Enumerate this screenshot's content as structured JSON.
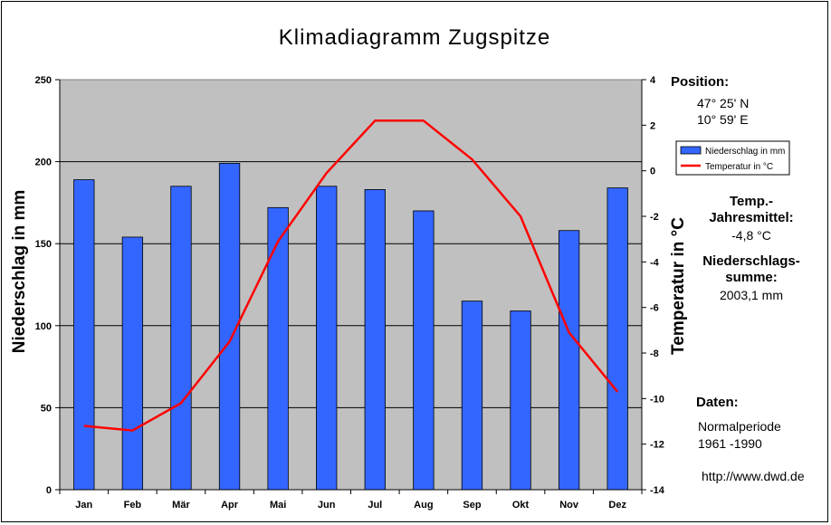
{
  "chart_data": {
    "type": "bar+line",
    "title": "Klimadiagramm Zugspitze",
    "categories": [
      "Jan",
      "Feb",
      "Mär",
      "Apr",
      "Mai",
      "Jun",
      "Jul",
      "Aug",
      "Sep",
      "Okt",
      "Nov",
      "Dez"
    ],
    "series": [
      {
        "name": "Niederschlag in mm",
        "type": "bar",
        "axis": "left",
        "color": "#3366ff",
        "values": [
          189,
          154,
          185,
          199,
          172,
          185,
          183,
          170,
          115,
          109,
          158,
          184
        ]
      },
      {
        "name": "Temperatur in °C",
        "type": "line",
        "axis": "right",
        "color": "#ff0000",
        "values": [
          -11.2,
          -11.4,
          -10.2,
          -7.5,
          -3.1,
          -0.1,
          2.2,
          2.2,
          0.5,
          -2.0,
          -7.1,
          -9.7
        ]
      }
    ],
    "ylabel_left": "Niederschlag in mm",
    "ylabel_right": "Temperatur in °C",
    "ylim_left": [
      0,
      250
    ],
    "yticks_left": [
      "0",
      "50",
      "100",
      "150",
      "200",
      "250"
    ],
    "ylim_right": [
      -14,
      4
    ],
    "yticks_right": [
      "-14",
      "-12",
      "-10",
      "-8",
      "-6",
      "-4",
      "-2",
      "0",
      "2",
      "4"
    ],
    "grid": true,
    "plot_background": "#c0c0c0",
    "legend": {
      "position": "right",
      "items": [
        "Niederschlag in mm",
        "Temperatur in °C"
      ]
    }
  },
  "info": {
    "position_label": "Position:",
    "lat": "47° 25' N",
    "lon": "10° 59' E",
    "temp_label_1": "Temp.-",
    "temp_label_2": "Jahresmittel:",
    "temp_value": "-4,8 °C",
    "precip_label_1": "Niederschlags-",
    "precip_label_2": "summe:",
    "precip_value": "2003,1 mm",
    "daten_label": "Daten:",
    "period_1": "Normalperiode",
    "period_2": "1961 -1990",
    "source": "http://www.dwd.de"
  }
}
